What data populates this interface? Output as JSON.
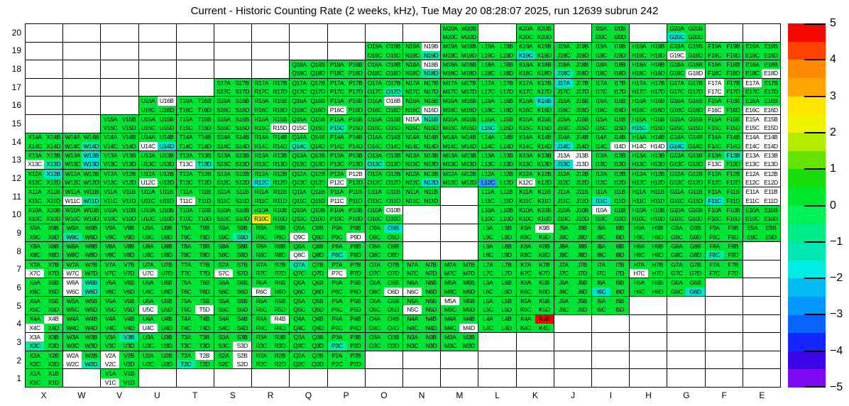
{
  "title": "Current - Historic Counting Rate (2 weeks, kHz), Tue May 20 08:28:07 2025, run 12639 subrun 242",
  "colors": {
    "g": "#00E435",
    "t": "#00ECA0",
    "c": "#00E6CE",
    "b": "#2F9BFF",
    "y": "#F2EE00",
    "r": "#FA0000",
    "w": "#FFFFFF"
  },
  "colorbar": {
    "min": -5,
    "max": 5,
    "ticks": [
      "5",
      "4",
      "3",
      "2",
      "1",
      "0",
      "−1",
      "−2",
      "−3",
      "−4",
      "−5"
    ],
    "bands": [
      "#F50800",
      "#FF4200",
      "#FF8A00",
      "#FFA600",
      "#FFE400",
      "#EEF200",
      "#B4EC00",
      "#64E200",
      "#16DC0C",
      "#00E82E",
      "#00F058",
      "#00EC86",
      "#00E7B2",
      "#00EBE4",
      "#00BCF2",
      "#0496FF",
      "#0A62FF",
      "#1426FF",
      "#3A06E8",
      "#7E0AF5"
    ]
  },
  "chart_data": {
    "type": "heatmap",
    "columns": [
      "X",
      "W",
      "V",
      "U",
      "T",
      "S",
      "R",
      "Q",
      "P",
      "O",
      "N",
      "M",
      "L",
      "K",
      "J",
      "I",
      "H",
      "G",
      "F",
      "E"
    ],
    "rows": [
      20,
      19,
      18,
      17,
      16,
      15,
      14,
      13,
      12,
      11,
      10,
      9,
      8,
      7,
      6,
      5,
      4,
      3,
      2,
      1
    ],
    "label_suffixes": [
      "A",
      "B",
      "C",
      "D"
    ],
    "value_bands_kHz": {
      "g": "0 to 1 (green)",
      "t": "-0.5 to -1.5 (teal-green)",
      "c": "-1.5 to -2 (cyan)",
      "b": "-2.5 to -3 (blue)",
      "y": "2.5 to 3 (yellow)",
      "r": "4.5 to 5 (red)",
      "w": "no data (white)"
    },
    "grid": {
      "20": {
        "M": "gggg",
        "K": "gggg",
        "I": "gggg",
        "G": "ggcg"
      },
      "19": {
        "O": "gggg",
        "N": "gwgt",
        "M": "gggg",
        "L": "gggg",
        "K": "ggcg",
        "J": "gggg",
        "I": "gggg",
        "H": "gggg",
        "G": "ggwg",
        "F": "gggg",
        "E": "gggg"
      },
      "18": {
        "Q": "gggg",
        "P": "gggg",
        "O": "gggg",
        "N": "gwgt",
        "M": "gggg",
        "L": "gggg",
        "K": "gggg",
        "J": "ggtg",
        "I": "gggg",
        "H": "gggg",
        "G": "gggw",
        "F": "gggg",
        "E": "gggw"
      },
      "17": {
        "S": "gggg",
        "R": "gggg",
        "Q": "gggg",
        "P": "gggg",
        "O": "gggt",
        "N": "gggg",
        "M": "gggg",
        "L": "gggg",
        "K": "gggg",
        "J": "cggg",
        "I": "gggg",
        "H": "gggg",
        "G": "gggg",
        "F": "wgwg",
        "E": "wggg"
      },
      "16": {
        "U": "gwgg",
        "T": "gggg",
        "S": "gggg",
        "R": "gggg",
        "Q": "gggg",
        "P": "ggwg",
        "O": "gwgg",
        "N": "gggw",
        "M": "gggg",
        "L": "gggg",
        "K": "gcgg",
        "J": "gggg",
        "I": "gggg",
        "H": "gggg",
        "G": "gggg",
        "F": "ggwg",
        "E": "ggww"
      },
      "15": {
        "V": "gggg",
        "U": "gggg",
        "T": "gggg",
        "S": "gggg",
        "R": "gggw",
        "Q": "ggwg",
        "P": "ggtg",
        "O": "gggg",
        "N": "wtgg",
        "M": "gggg",
        "L": "ggtg",
        "K": "gggg",
        "J": "gggg",
        "I": "gggg",
        "H": "ggtg",
        "G": "gggg",
        "F": "gggg",
        "E": "wwww"
      },
      "14": {
        "X": "gggg",
        "W": "gggt",
        "V": "gggg",
        "U": "ggwc",
        "T": "gggg",
        "S": "gggg",
        "R": "gggg",
        "Q": "ggtg",
        "P": "gggg",
        "O": "gggg",
        "N": "gggg",
        "M": "gggg",
        "L": "gggg",
        "K": "gggg",
        "J": "ggcg",
        "I": "gggw",
        "H": "ggww",
        "G": "ggcg",
        "F": "gggg",
        "E": "wwww"
      },
      "13": {
        "X": "ggwt",
        "W": "gcgc",
        "V": "gggg",
        "U": "gggg",
        "T": "ggwt",
        "S": "gggg",
        "R": "gggg",
        "Q": "gggg",
        "P": "gggg",
        "O": "ggtg",
        "N": "gggg",
        "M": "gggg",
        "L": "gggg",
        "K": "gggg",
        "J": "wwcw",
        "I": "gggg",
        "H": "gggg",
        "G": "gggg",
        "F": "gtwg",
        "E": "wwww"
      },
      "12": {
        "X": "gcgg",
        "W": "gggg",
        "V": "gggg",
        "U": "ggwg",
        "T": "gggg",
        "S": "gggg",
        "R": "ggcg",
        "Q": "gggg",
        "P": "gwwg",
        "O": "gggg",
        "N": "gggc",
        "M": "gggg",
        "L": "ggbg",
        "K": "ggwg",
        "J": "gggg",
        "I": "gggg",
        "H": "gggg",
        "G": "gggg",
        "F": "gggg",
        "E": "wwww"
      },
      "11": {
        "X": "gggg",
        "W": "ggwt",
        "V": "gggg",
        "U": "gggg",
        "T": "ggwg",
        "S": "gggg",
        "R": "gggg",
        "Q": "gggg",
        "P": "ggwg",
        "O": "gggg",
        "N": "gggg",
        "L": "gggg",
        "K": "gggg",
        "J": "gggg",
        "I": "ggcg",
        "H": "gggg",
        "G": "gggg",
        "F": "ggcg",
        "E": "wwww"
      },
      "10": {
        "X": "gggg",
        "W": "gggg",
        "V": "gggg",
        "U": "gggg",
        "T": "gggg",
        "S": "gggg",
        "R": "ggyg",
        "Q": "gggg",
        "P": "gggg",
        "O": "gwgg",
        "L": "gggg",
        "K": "gggg",
        "J": "gggg",
        "I": "wggg",
        "H": "gggg",
        "G": "gggg",
        "F": "gggg",
        "E": "gggg"
      },
      "9": {
        "X": "gggg",
        "W": "ggtg",
        "V": "gggg",
        "U": "gggg",
        "T": "gggg",
        "S": "gggt",
        "R": "gggg",
        "Q": "ggwg",
        "P": "gggw",
        "O": "gcgg",
        "L": "gggg",
        "K": "gwgg",
        "J": "gggg",
        "I": "gggg",
        "H": "gggg",
        "G": "gggg",
        "F": "gggg",
        "E": "gggg"
      },
      "8": {
        "X": "gggg",
        "W": "gggg",
        "V": "gggg",
        "U": "gggg",
        "T": "gggg",
        "S": "gggg",
        "R": "gggg",
        "Q": "ggwg",
        "P": "ggtg",
        "O": "gggg",
        "L": "gggg",
        "K": "gggg",
        "J": "gggg",
        "I": "gggg",
        "H": "gggg",
        "G": "gggg",
        "F": "ggtg"
      },
      "7": {
        "X": "ggwg",
        "W": "ggwg",
        "V": "gggg",
        "U": "ggwg",
        "T": "gggg",
        "S": "ggwg",
        "R": "gggg",
        "Q": "tggg",
        "P": "ggwg",
        "O": "gggg",
        "N": "gggg",
        "M": "gggg",
        "L": "gggg",
        "K": "gggg",
        "J": "gggg",
        "I": "gggg",
        "H": "ggwg",
        "G": "gggg",
        "F": "gggg"
      },
      "6": {
        "X": "gggg",
        "W": "wtwt",
        "V": "gggg",
        "U": "gggg",
        "T": "gggg",
        "S": "gggg",
        "R": "ggwg",
        "Q": "gggg",
        "P": "gggg",
        "O": "gggw",
        "N": "ggwg",
        "M": "gggg",
        "L": "gggg",
        "K": "gggg",
        "J": "gggg",
        "I": "ggcg",
        "H": "gggg",
        "G": "gggc"
      },
      "5": {
        "X": "gggg",
        "W": "gggg",
        "V": "gggg",
        "U": "ggwg",
        "T": "gggw",
        "S": "gggg",
        "R": "gggg",
        "Q": "gggg",
        "P": "gggg",
        "O": "gggg",
        "N": "ggwg",
        "M": "wggg",
        "L": "gggg",
        "K": "gggg",
        "J": "gggg",
        "I": "gggg"
      },
      "4": {
        "X": "gwwg",
        "W": "gggg",
        "V": "gggg",
        "U": "ggwg",
        "T": "gggg",
        "S": "gggg",
        "R": "gwgg",
        "Q": "gggg",
        "P": "gggg",
        "O": "gggg",
        "N": "gggg",
        "M": "gggw",
        "L": "gggg",
        "K": "grgg"
      },
      "3": {
        "X": "wgtg",
        "W": "gggg",
        "V": "gtgg",
        "U": "gggg",
        "T": "gggg",
        "S": "gggw",
        "R": "gggg",
        "Q": "gggg",
        "P": "ggtg",
        "O": "gggg",
        "N": "gggg",
        "M": "gggg"
      },
      "2": {
        "X": "gggg",
        "W": "wgwt",
        "V": "wgwg",
        "U": "gggg",
        "T": "gwtg",
        "S": "gwgw",
        "R": "gggg",
        "Q": "gggg",
        "P": "gggg"
      },
      "1": {
        "X": "gggg",
        "V": "ggwg"
      }
    }
  }
}
